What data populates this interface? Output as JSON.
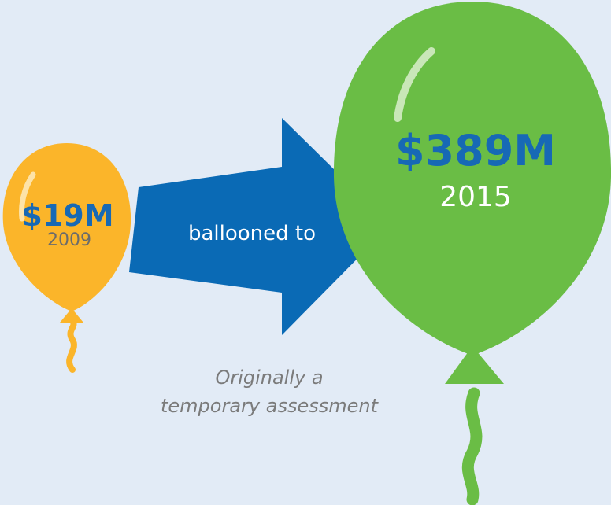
{
  "balloons": [
    {
      "amount": "$19M",
      "year": "2009"
    },
    {
      "amount": "$389M",
      "year": "2015"
    }
  ],
  "arrow_label": "ballooned to",
  "caption": [
    "Originally a",
    "temporary assessment"
  ]
}
